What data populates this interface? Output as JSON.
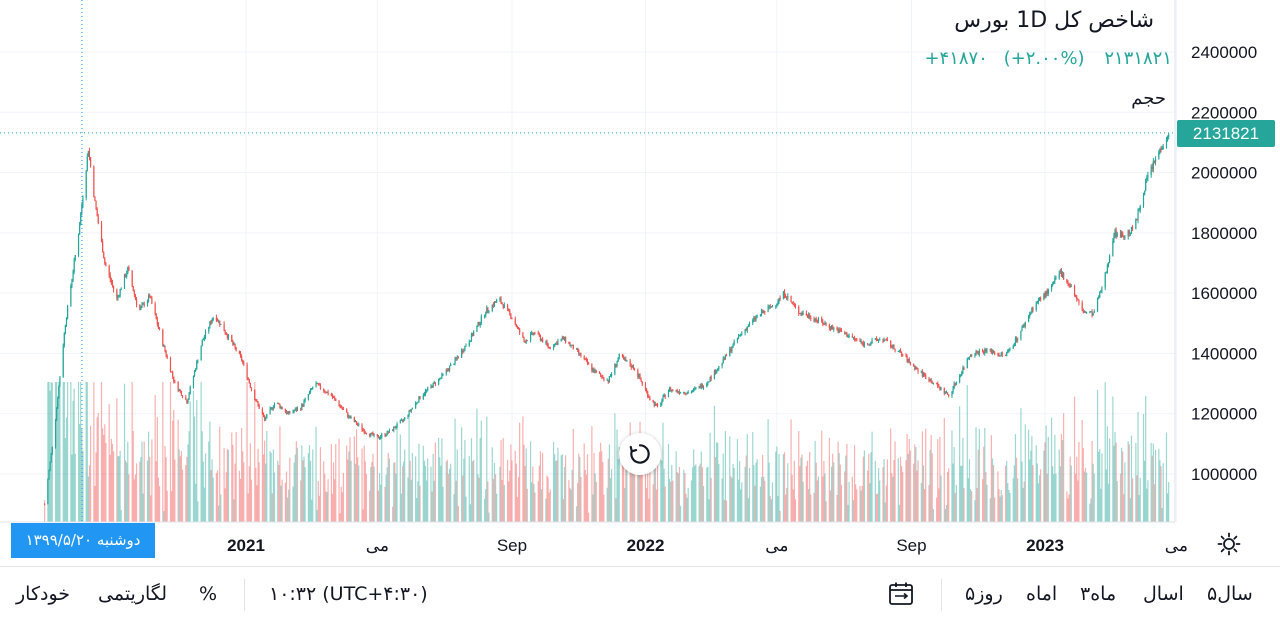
{
  "header": {
    "title": "شاخص کل 1D بورس",
    "change_abs": "+۴۱۸۷۰",
    "change_pct": "(+۲.۰۰%)",
    "last_value": "۲۱۳۱۸۲۱",
    "volume_label": "حجم"
  },
  "price_badge": "2131821",
  "crosshair_date": "دوشنبه ۱۳۹۹/۵/۲۰",
  "colors": {
    "up": "#26a69a",
    "down": "#ef5350",
    "crosshair": "#2196f3",
    "grid": "#f0f3fa"
  },
  "icons": {
    "reset": "reset-icon",
    "settings": "settings-icon",
    "compare": "calendar-range-icon"
  },
  "toolbar": {
    "ranges": [
      "۵سال",
      "اسال",
      "۳ماه",
      "اماه",
      "۵روز"
    ],
    "time": "۱۰:۳۲ (UTC+۴:۳۰)",
    "percent": "%",
    "log": "لگاریتمی",
    "auto": "خودکار"
  },
  "chart_data": {
    "type": "candlestick",
    "title": "شاخص کل 1D بورس",
    "last_price": 2131821,
    "ylim": [
      850000,
      2500000
    ],
    "y_ticks": [
      "2400000",
      "2200000",
      "2000000",
      "1800000",
      "1600000",
      "1400000",
      "1200000",
      "1000000"
    ],
    "x_ticks": [
      {
        "label": "2021",
        "bold": true
      },
      {
        "label": "می",
        "bold": false
      },
      {
        "label": "Sep",
        "bold": false
      },
      {
        "label": "2022",
        "bold": true
      },
      {
        "label": "می",
        "bold": false
      },
      {
        "label": "Sep",
        "bold": false
      },
      {
        "label": "2023",
        "bold": true
      },
      {
        "label": "می",
        "bold": false
      }
    ],
    "x_tick_dates": [
      "2021-01",
      "2021-05",
      "2021-09",
      "2022-01",
      "2022-05",
      "2022-09",
      "2023-01",
      "2023-05"
    ],
    "x_range": [
      "2020-07-01",
      "2023-06-05"
    ],
    "price_path": [
      [
        "2020-07-01",
        900000
      ],
      [
        "2020-07-10",
        1150000
      ],
      [
        "2020-07-20",
        1500000
      ],
      [
        "2020-08-01",
        1800000
      ],
      [
        "2020-08-10",
        2080000
      ],
      [
        "2020-08-16",
        1900000
      ],
      [
        "2020-08-25",
        1700000
      ],
      [
        "2020-09-05",
        1580000
      ],
      [
        "2020-09-15",
        1680000
      ],
      [
        "2020-09-25",
        1540000
      ],
      [
        "2020-10-05",
        1590000
      ],
      [
        "2020-10-18",
        1420000
      ],
      [
        "2020-10-28",
        1300000
      ],
      [
        "2020-11-08",
        1240000
      ],
      [
        "2020-11-22",
        1440000
      ],
      [
        "2020-12-03",
        1530000
      ],
      [
        "2020-12-15",
        1460000
      ],
      [
        "2020-12-28",
        1380000
      ],
      [
        "2021-01-08",
        1260000
      ],
      [
        "2021-01-18",
        1180000
      ],
      [
        "2021-01-28",
        1240000
      ],
      [
        "2021-02-08",
        1200000
      ],
      [
        "2021-02-20",
        1220000
      ],
      [
        "2021-03-05",
        1300000
      ],
      [
        "2021-03-20",
        1260000
      ],
      [
        "2021-04-05",
        1190000
      ],
      [
        "2021-04-20",
        1140000
      ],
      [
        "2021-05-01",
        1120000
      ],
      [
        "2021-05-12",
        1140000
      ],
      [
        "2021-05-25",
        1180000
      ],
      [
        "2021-06-10",
        1260000
      ],
      [
        "2021-06-28",
        1320000
      ],
      [
        "2021-07-12",
        1380000
      ],
      [
        "2021-07-25",
        1450000
      ],
      [
        "2021-08-08",
        1540000
      ],
      [
        "2021-08-20",
        1580000
      ],
      [
        "2021-09-01",
        1520000
      ],
      [
        "2021-09-12",
        1440000
      ],
      [
        "2021-09-22",
        1470000
      ],
      [
        "2021-10-05",
        1420000
      ],
      [
        "2021-10-18",
        1450000
      ],
      [
        "2021-11-01",
        1400000
      ],
      [
        "2021-11-15",
        1340000
      ],
      [
        "2021-11-28",
        1310000
      ],
      [
        "2021-12-08",
        1390000
      ],
      [
        "2021-12-22",
        1350000
      ],
      [
        "2022-01-05",
        1250000
      ],
      [
        "2022-01-12",
        1220000
      ],
      [
        "2022-01-22",
        1280000
      ],
      [
        "2022-02-10",
        1270000
      ],
      [
        "2022-02-25",
        1300000
      ],
      [
        "2022-03-10",
        1360000
      ],
      [
        "2022-03-28",
        1460000
      ],
      [
        "2022-04-12",
        1520000
      ],
      [
        "2022-04-28",
        1560000
      ],
      [
        "2022-05-08",
        1600000
      ],
      [
        "2022-05-20",
        1540000
      ],
      [
        "2022-06-02",
        1520000
      ],
      [
        "2022-06-18",
        1490000
      ],
      [
        "2022-07-05",
        1460000
      ],
      [
        "2022-07-20",
        1430000
      ],
      [
        "2022-08-05",
        1450000
      ],
      [
        "2022-08-22",
        1400000
      ],
      [
        "2022-09-08",
        1340000
      ],
      [
        "2022-09-22",
        1300000
      ],
      [
        "2022-10-05",
        1260000
      ],
      [
        "2022-10-14",
        1320000
      ],
      [
        "2022-10-25",
        1400000
      ],
      [
        "2022-11-10",
        1410000
      ],
      [
        "2022-11-25",
        1390000
      ],
      [
        "2022-12-08",
        1460000
      ],
      [
        "2022-12-22",
        1560000
      ],
      [
        "2023-01-05",
        1610000
      ],
      [
        "2023-01-15",
        1670000
      ],
      [
        "2023-01-25",
        1620000
      ],
      [
        "2023-02-04",
        1540000
      ],
      [
        "2023-02-14",
        1530000
      ],
      [
        "2023-02-24",
        1640000
      ],
      [
        "2023-03-05",
        1800000
      ],
      [
        "2023-03-15",
        1790000
      ],
      [
        "2023-03-24",
        1820000
      ],
      [
        "2023-04-04",
        1980000
      ],
      [
        "2023-04-14",
        2060000
      ],
      [
        "2023-04-24",
        2131821
      ]
    ]
  }
}
